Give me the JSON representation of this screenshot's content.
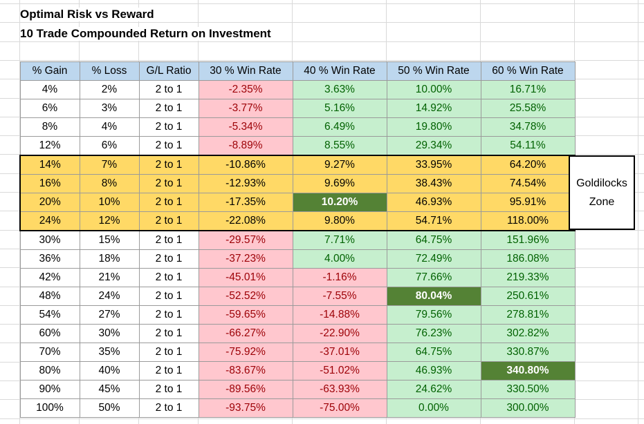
{
  "titles": {
    "line1": "Optimal Risk vs Reward",
    "line2": "10 Trade Compounded Return on Investment"
  },
  "headers": [
    "% Gain",
    "% Loss",
    "G/L Ratio",
    "30 % Win Rate",
    "40 % Win Rate",
    "50 % Win Rate",
    "60 % Win Rate"
  ],
  "rows": [
    {
      "gain": "4%",
      "loss": "2%",
      "ratio": "2 to 1",
      "w30": "-2.35%",
      "w40": "3.63%",
      "w50": "10.00%",
      "w60": "16.71%"
    },
    {
      "gain": "6%",
      "loss": "3%",
      "ratio": "2 to 1",
      "w30": "-3.77%",
      "w40": "5.16%",
      "w50": "14.92%",
      "w60": "25.58%"
    },
    {
      "gain": "8%",
      "loss": "4%",
      "ratio": "2 to 1",
      "w30": "-5.34%",
      "w40": "6.49%",
      "w50": "19.80%",
      "w60": "34.78%"
    },
    {
      "gain": "12%",
      "loss": "6%",
      "ratio": "2 to 1",
      "w30": "-8.89%",
      "w40": "8.55%",
      "w50": "29.34%",
      "w60": "54.11%"
    },
    {
      "gain": "14%",
      "loss": "7%",
      "ratio": "2 to 1",
      "w30": "-10.86%",
      "w40": "9.27%",
      "w50": "33.95%",
      "w60": "64.20%"
    },
    {
      "gain": "16%",
      "loss": "8%",
      "ratio": "2 to 1",
      "w30": "-12.93%",
      "w40": "9.69%",
      "w50": "38.43%",
      "w60": "74.54%"
    },
    {
      "gain": "20%",
      "loss": "10%",
      "ratio": "2 to 1",
      "w30": "-17.35%",
      "w40": "10.20%",
      "w50": "46.93%",
      "w60": "95.91%"
    },
    {
      "gain": "24%",
      "loss": "12%",
      "ratio": "2 to 1",
      "w30": "-22.08%",
      "w40": "9.80%",
      "w50": "54.71%",
      "w60": "118.00%"
    },
    {
      "gain": "30%",
      "loss": "15%",
      "ratio": "2 to 1",
      "w30": "-29.57%",
      "w40": "7.71%",
      "w50": "64.75%",
      "w60": "151.96%"
    },
    {
      "gain": "36%",
      "loss": "18%",
      "ratio": "2 to 1",
      "w30": "-37.23%",
      "w40": "4.00%",
      "w50": "72.49%",
      "w60": "186.08%"
    },
    {
      "gain": "42%",
      "loss": "21%",
      "ratio": "2 to 1",
      "w30": "-45.01%",
      "w40": "-1.16%",
      "w50": "77.66%",
      "w60": "219.33%"
    },
    {
      "gain": "48%",
      "loss": "24%",
      "ratio": "2 to 1",
      "w30": "-52.52%",
      "w40": "-7.55%",
      "w50": "80.04%",
      "w60": "250.61%"
    },
    {
      "gain": "54%",
      "loss": "27%",
      "ratio": "2 to 1",
      "w30": "-59.65%",
      "w40": "-14.88%",
      "w50": "79.56%",
      "w60": "278.81%"
    },
    {
      "gain": "60%",
      "loss": "30%",
      "ratio": "2 to 1",
      "w30": "-66.27%",
      "w40": "-22.90%",
      "w50": "76.23%",
      "w60": "302.82%"
    },
    {
      "gain": "70%",
      "loss": "35%",
      "ratio": "2 to 1",
      "w30": "-75.92%",
      "w40": "-37.01%",
      "w50": "64.75%",
      "w60": "330.87%"
    },
    {
      "gain": "80%",
      "loss": "40%",
      "ratio": "2 to 1",
      "w30": "-83.67%",
      "w40": "-51.02%",
      "w50": "46.93%",
      "w60": "340.80%"
    },
    {
      "gain": "90%",
      "loss": "45%",
      "ratio": "2 to 1",
      "w30": "-89.56%",
      "w40": "-63.93%",
      "w50": "24.62%",
      "w60": "330.50%"
    },
    {
      "gain": "100%",
      "loss": "50%",
      "ratio": "2 to 1",
      "w30": "-93.75%",
      "w40": "-75.00%",
      "w50": "0.00%",
      "w60": "300.00%"
    }
  ],
  "zone": {
    "line1": "Goldilocks",
    "line2": "Zone"
  },
  "colors": {
    "header": "#bdd7ee",
    "negative_fill": "#ffc7ce",
    "negative_text": "#9c0006",
    "positive_fill": "#c6efce",
    "positive_text": "#006100",
    "goldilocks_fill": "#ffd966",
    "best_fill": "#548235"
  }
}
